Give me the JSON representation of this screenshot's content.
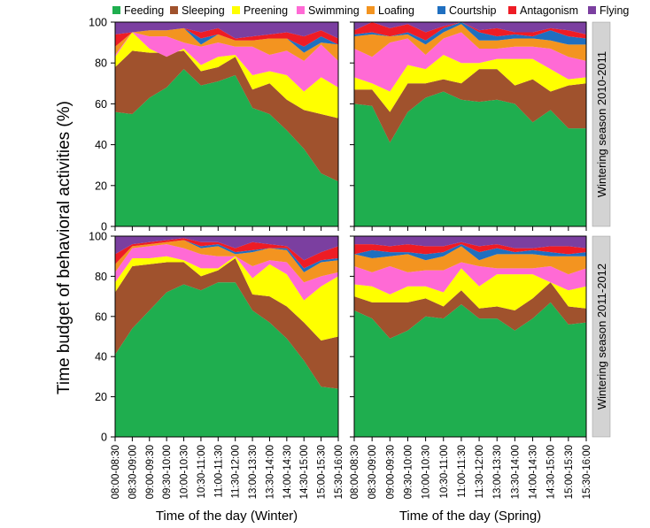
{
  "chart_data": {
    "type": "area",
    "ylabel": "Time budget of behavioral activities (%)",
    "ylim": [
      0,
      100
    ],
    "yticks": [
      0,
      20,
      40,
      60,
      80,
      100
    ],
    "legend_placement": "top",
    "categories": [
      "08:00-08:30",
      "08:30-09:00",
      "09:00-09:30",
      "09:30-10:00",
      "10:00-10:30",
      "10:30-11:00",
      "11:00-11:30",
      "11:30-12:00",
      "13:00-13:30",
      "13:30-14:00",
      "14:00-14:30",
      "14:30-15:00",
      "15:00-15:30",
      "15:30-16:00"
    ],
    "columns": [
      {
        "xlabel": "Time of the day (Winter)"
      },
      {
        "xlabel": "Time of the day (Spring)"
      }
    ],
    "rows": [
      {
        "label": "Wintering season 2010-2011"
      },
      {
        "label": "Wintering season 2011-2012"
      }
    ],
    "series": [
      {
        "name": "Feeding",
        "color": "#1fae4f"
      },
      {
        "name": "Sleeping",
        "color": "#a0522d"
      },
      {
        "name": "Preening",
        "color": "#ffff00"
      },
      {
        "name": "Swimming",
        "color": "#ff6ad5"
      },
      {
        "name": "Loafing",
        "color": "#f39420"
      },
      {
        "name": "Courtship",
        "color": "#1f6fc0"
      },
      {
        "name": "Antagonism",
        "color": "#ee1c25"
      },
      {
        "name": "Flying",
        "color": "#7b3fa0"
      }
    ],
    "panels": [
      {
        "row": 0,
        "col": 0,
        "cumulative": [
          [
            56,
            55,
            63,
            68,
            77,
            69,
            71,
            74,
            58,
            55,
            47,
            38,
            26,
            22
          ],
          [
            78,
            86,
            85,
            85,
            86,
            76,
            78,
            83,
            67,
            70,
            62,
            57,
            55,
            53
          ],
          [
            83,
            95,
            87,
            83,
            87,
            79,
            83,
            84,
            74,
            76,
            74,
            66,
            73,
            68
          ],
          [
            84,
            95,
            93,
            93,
            90,
            88,
            90,
            88,
            88,
            84,
            86,
            81,
            89,
            81
          ],
          [
            88,
            95,
            96,
            96,
            97,
            89,
            94,
            91,
            91,
            92,
            92,
            85,
            90,
            89
          ],
          [
            88,
            95,
            96,
            96,
            97,
            92,
            94,
            91,
            91,
            92,
            92,
            88,
            93,
            89
          ],
          [
            94,
            95,
            96,
            96,
            97,
            95,
            97,
            92,
            93,
            94,
            95,
            93,
            96,
            92
          ],
          [
            100,
            100,
            100,
            100,
            100,
            100,
            100,
            100,
            100,
            100,
            100,
            100,
            100,
            100
          ]
        ]
      },
      {
        "row": 0,
        "col": 1,
        "cumulative": [
          [
            60,
            59,
            41,
            56,
            63,
            66,
            62,
            61,
            62,
            60,
            51,
            57,
            48,
            48
          ],
          [
            67,
            67,
            56,
            70,
            70,
            72,
            70,
            77,
            77,
            69,
            72,
            66,
            69,
            70
          ],
          [
            73,
            70,
            66,
            79,
            77,
            84,
            80,
            80,
            82,
            82,
            82,
            77,
            72,
            73
          ],
          [
            87,
            83,
            90,
            92,
            84,
            92,
            95,
            87,
            87,
            88,
            88,
            87,
            83,
            81
          ],
          [
            93,
            94,
            93,
            94,
            89,
            95,
            99,
            91,
            91,
            92,
            92,
            91,
            89,
            89
          ],
          [
            94,
            95,
            93,
            95,
            91,
            97,
            100,
            95,
            93,
            94,
            93,
            96,
            93,
            92
          ],
          [
            96,
            100,
            97,
            99,
            95,
            98,
            100,
            96,
            97,
            95,
            95,
            97,
            96,
            94
          ],
          [
            100,
            100,
            100,
            100,
            100,
            100,
            100,
            100,
            100,
            100,
            100,
            100,
            100,
            100
          ]
        ]
      },
      {
        "row": 1,
        "col": 0,
        "cumulative": [
          [
            41,
            54,
            63,
            72,
            76,
            73,
            77,
            77,
            63,
            57,
            49,
            38,
            25,
            24
          ],
          [
            72,
            85,
            86,
            87,
            87,
            80,
            83,
            89,
            71,
            70,
            65,
            57,
            48,
            50
          ],
          [
            77,
            89,
            89,
            90,
            88,
            84,
            84,
            90,
            79,
            86,
            81,
            68,
            75,
            80
          ],
          [
            82,
            94,
            95,
            96,
            94,
            91,
            90,
            90,
            85,
            88,
            87,
            77,
            80,
            82
          ],
          [
            86,
            95,
            96,
            97,
            98,
            94,
            95,
            91,
            92,
            94,
            93,
            82,
            87,
            88
          ],
          [
            86,
            95,
            96,
            97,
            98,
            95,
            96,
            92,
            93,
            94,
            94,
            84,
            88,
            89
          ],
          [
            91,
            96,
            97,
            98,
            99,
            97,
            97,
            94,
            97,
            96,
            95,
            88,
            92,
            95
          ],
          [
            100,
            100,
            100,
            100,
            100,
            100,
            100,
            100,
            100,
            100,
            100,
            100,
            100,
            100
          ]
        ]
      },
      {
        "row": 1,
        "col": 1,
        "cumulative": [
          [
            63,
            59,
            49,
            53,
            60,
            59,
            66,
            59,
            59,
            53,
            59,
            67,
            56,
            57
          ],
          [
            70,
            67,
            67,
            67,
            69,
            65,
            73,
            64,
            65,
            63,
            69,
            77,
            65,
            64
          ],
          [
            76,
            75,
            71,
            75,
            75,
            72,
            84,
            75,
            81,
            81,
            81,
            77,
            73,
            75
          ],
          [
            85,
            82,
            85,
            82,
            83,
            83,
            87,
            85,
            84,
            84,
            84,
            85,
            81,
            84
          ],
          [
            91,
            89,
            90,
            91,
            88,
            90,
            95,
            88,
            91,
            91,
            91,
            90,
            90,
            90
          ],
          [
            91,
            93,
            92,
            92,
            91,
            92,
            96,
            92,
            94,
            92,
            93,
            92,
            91,
            92
          ],
          [
            96,
            96,
            95,
            96,
            95,
            95,
            97,
            95,
            96,
            94,
            94,
            95,
            95,
            94
          ],
          [
            100,
            100,
            100,
            100,
            100,
            100,
            100,
            100,
            100,
            100,
            100,
            100,
            100,
            100
          ]
        ]
      }
    ]
  }
}
